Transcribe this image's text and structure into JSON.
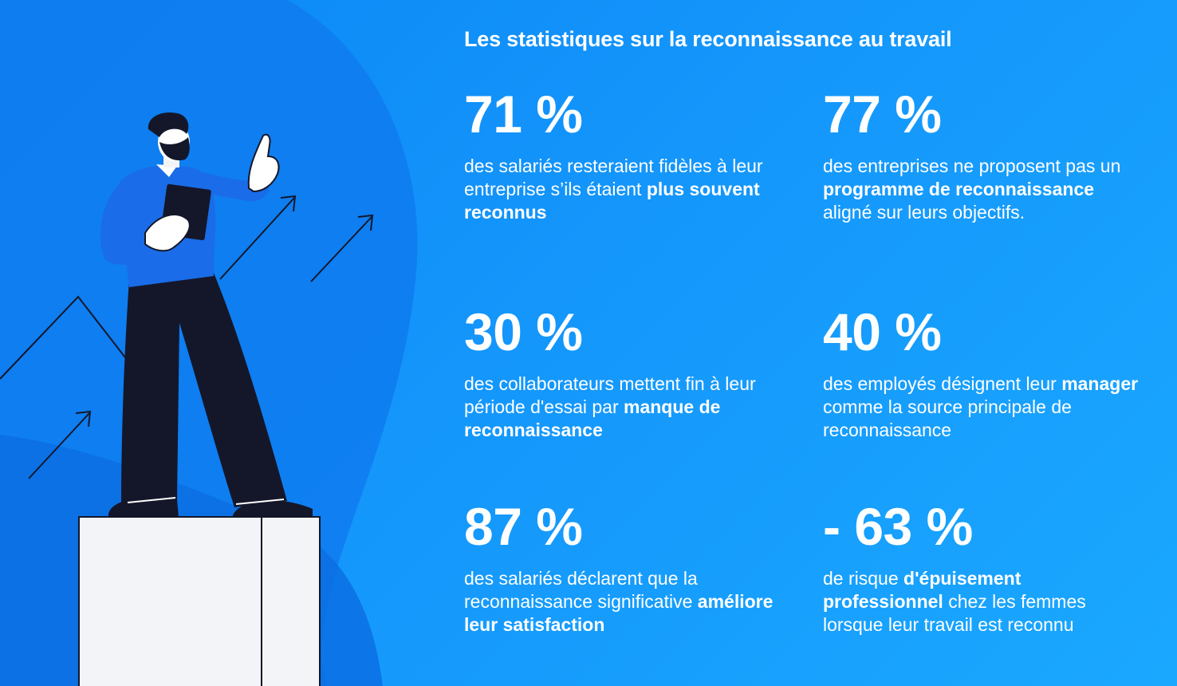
{
  "title": "Les statistiques sur la reconnaissance au travail",
  "colors": {
    "background": "#1496fb",
    "text": "#ffffff",
    "figure_shirt": "#1a6ce8",
    "figure_pants": "#14172a"
  },
  "illustration": {
    "icon": "man-on-podium-pointing-up-icon"
  },
  "stats": [
    {
      "value": "71 %",
      "desc": {
        "p1": "des salariés resteraient fidèles à leur entreprise s’ils étaient ",
        "b1": "plus souvent reconnus",
        "p2": "",
        "b2": "",
        "p3": ""
      }
    },
    {
      "value": "77 %",
      "desc": {
        "p1": "des entreprises ne proposent pas un ",
        "b1": "programme de reconnaissance",
        "p2": " aligné sur leurs objectifs.",
        "b2": "",
        "p3": ""
      }
    },
    {
      "value": "30 %",
      "desc": {
        "p1": "des collaborateurs mettent fin à leur période d'essai par ",
        "b1": "manque de reconnaissance",
        "p2": "",
        "b2": "",
        "p3": ""
      }
    },
    {
      "value": "40 %",
      "desc": {
        "p1": "des employés désignent leur ",
        "b1": "manager",
        "p2": " comme la source principale de reconnaissance",
        "b2": "",
        "p3": ""
      }
    },
    {
      "value": "87 %",
      "desc": {
        "p1": "des salariés déclarent que la reconnaissance significative ",
        "b1": "améliore leur satisfaction",
        "p2": "",
        "b2": "",
        "p3": ""
      }
    },
    {
      "value": "- 63 %",
      "desc": {
        "p1": "de risque ",
        "b1": "d'épuisement professionnel",
        "p2": " chez les femmes lorsque leur travail est reconnu",
        "b2": "",
        "p3": ""
      }
    }
  ]
}
